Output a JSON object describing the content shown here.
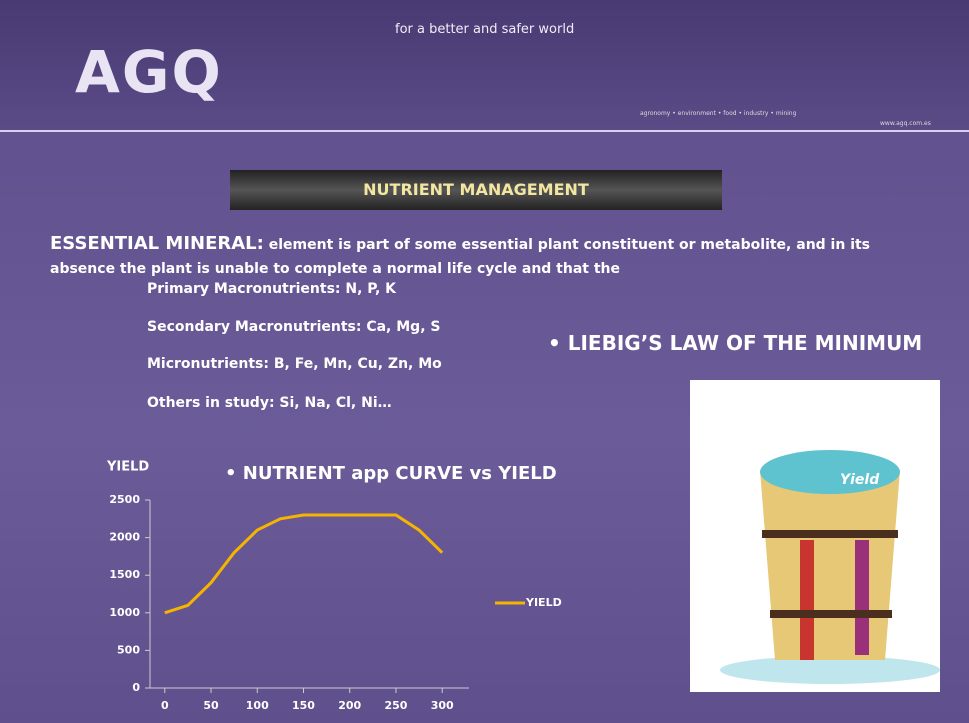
{
  "header": {
    "logo": "AGQ",
    "tagline": "for a better and safer world",
    "sectors": "agronomy • environment • food • industry • mining",
    "url": "www.agq.com.es"
  },
  "title": "NUTRIENT MANAGEMENT",
  "definition": {
    "term": "ESSENTIAL MINERAL:",
    "text": "element is part of some essential plant constituent or metabolite, and in its absence the plant is unable to complete a normal life cycle and that the"
  },
  "list": [
    "Primary Macronutrients: N, P, K",
    "Secondary Macronutrients: Ca, Mg, S",
    "Micronutrients: B, Fe, Mn, Cu, Zn, Mo",
    "Others in study: Si, Na, Cl, Ni…"
  ],
  "liebig": "• LIEBIG’S LAW OF THE MINIMUM",
  "image_label": "Yield",
  "chart_data": {
    "type": "line",
    "title": "• NUTRIENT app CURVE vs YIELD",
    "y_label": "YIELD",
    "x": [
      0,
      25,
      50,
      75,
      100,
      125,
      150,
      175,
      200,
      225,
      250,
      275,
      300
    ],
    "series": [
      {
        "name": "YIELD",
        "color": "#f5b400",
        "values": [
          1000,
          1100,
          1400,
          1800,
          2100,
          2250,
          2300,
          2300,
          2300,
          2300,
          2300,
          2100,
          1800
        ]
      }
    ],
    "xlim": [
      -16,
      329
    ],
    "xticks": [
      0,
      50,
      100,
      150,
      200,
      250,
      300
    ],
    "ylim": [
      0,
      2500
    ],
    "yticks": [
      0,
      500,
      1000,
      1500,
      2000,
      2500
    ],
    "legend": "right"
  }
}
